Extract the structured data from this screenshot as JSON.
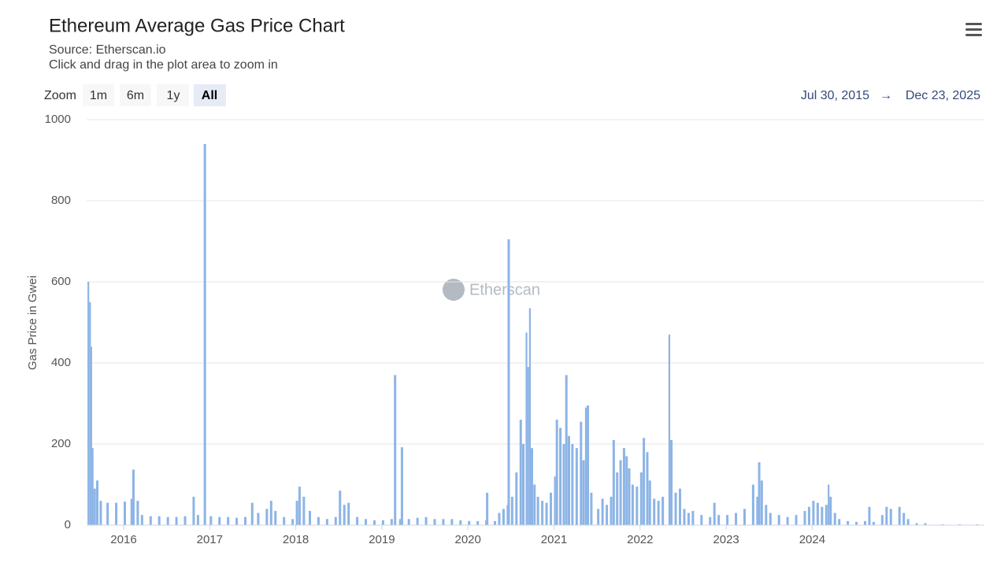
{
  "chart_data": {
    "type": "bar",
    "title": "Ethereum Average Gas Price Chart",
    "subtitle_source": "Source: Etherscan.io",
    "subtitle_hint": "Click and drag in the plot area to zoom in",
    "zoom_label": "Zoom",
    "zoom_buttons": [
      "1m",
      "6m",
      "1y",
      "All"
    ],
    "range_from": "Jul 30, 2015",
    "range_separator": "→",
    "range_to": "Dec 23, 2025",
    "watermark": "Etherscan",
    "y_label": "Gas Price in Gwei",
    "color": "#8cb4e6",
    "grid": true,
    "xlim": [
      2015.57,
      2026.0
    ],
    "xticks": [
      2016,
      2017,
      2018,
      2019,
      2020,
      2021,
      2022,
      2023,
      2024
    ],
    "ylim": [
      0,
      1000
    ],
    "yticks": [
      0,
      200,
      400,
      600,
      800,
      1000
    ],
    "x": [
      2015.58,
      2015.6,
      2015.62,
      2015.63,
      2015.65,
      2015.68,
      2015.72,
      2015.8,
      2015.9,
      2016.0,
      2016.08,
      2016.1,
      2016.15,
      2016.2,
      2016.3,
      2016.4,
      2016.5,
      2016.6,
      2016.7,
      2016.8,
      2016.85,
      2016.93,
      2017.0,
      2017.1,
      2017.2,
      2017.3,
      2017.4,
      2017.48,
      2017.55,
      2017.65,
      2017.7,
      2017.75,
      2017.85,
      2017.95,
      2018.0,
      2018.03,
      2018.08,
      2018.15,
      2018.25,
      2018.35,
      2018.45,
      2018.5,
      2018.55,
      2018.6,
      2018.7,
      2018.8,
      2018.9,
      2019.0,
      2019.1,
      2019.14,
      2019.2,
      2019.22,
      2019.3,
      2019.4,
      2019.5,
      2019.6,
      2019.7,
      2019.8,
      2019.9,
      2020.0,
      2020.1,
      2020.2,
      2020.21,
      2020.3,
      2020.35,
      2020.4,
      2020.45,
      2020.46,
      2020.5,
      2020.55,
      2020.6,
      2020.63,
      2020.67,
      2020.69,
      2020.71,
      2020.73,
      2020.76,
      2020.8,
      2020.85,
      2020.9,
      2020.95,
      2021.0,
      2021.02,
      2021.06,
      2021.1,
      2021.13,
      2021.16,
      2021.2,
      2021.25,
      2021.3,
      2021.33,
      2021.36,
      2021.38,
      2021.42,
      2021.5,
      2021.55,
      2021.6,
      2021.65,
      2021.68,
      2021.72,
      2021.76,
      2021.8,
      2021.83,
      2021.86,
      2021.9,
      2021.95,
      2022.0,
      2022.03,
      2022.07,
      2022.1,
      2022.15,
      2022.2,
      2022.25,
      2022.33,
      2022.35,
      2022.4,
      2022.45,
      2022.5,
      2022.55,
      2022.6,
      2022.7,
      2022.8,
      2022.85,
      2022.9,
      2023.0,
      2023.1,
      2023.2,
      2023.3,
      2023.35,
      2023.37,
      2023.4,
      2023.45,
      2023.5,
      2023.6,
      2023.7,
      2023.8,
      2023.9,
      2023.95,
      2024.0,
      2024.05,
      2024.1,
      2024.15,
      2024.18,
      2024.2,
      2024.25,
      2024.3,
      2024.4,
      2024.5,
      2024.6,
      2024.65,
      2024.7,
      2024.8,
      2024.85,
      2024.9,
      2025.0,
      2025.05,
      2025.1,
      2025.2,
      2025.3,
      2025.5,
      2025.7,
      2025.9
    ],
    "values": [
      600,
      550,
      440,
      190,
      90,
      110,
      60,
      55,
      55,
      58,
      65,
      137,
      60,
      25,
      22,
      22,
      20,
      20,
      22,
      70,
      25,
      940,
      22,
      20,
      20,
      18,
      20,
      55,
      30,
      40,
      60,
      35,
      20,
      15,
      60,
      95,
      70,
      35,
      20,
      15,
      20,
      85,
      50,
      55,
      20,
      15,
      12,
      12,
      15,
      370,
      15,
      192,
      15,
      18,
      20,
      15,
      15,
      15,
      12,
      10,
      10,
      12,
      80,
      10,
      30,
      40,
      50,
      705,
      70,
      130,
      260,
      200,
      475,
      390,
      535,
      190,
      100,
      70,
      60,
      55,
      80,
      120,
      260,
      240,
      200,
      370,
      220,
      200,
      190,
      255,
      160,
      290,
      295,
      80,
      40,
      65,
      50,
      70,
      210,
      130,
      160,
      190,
      170,
      140,
      100,
      95,
      130,
      215,
      180,
      110,
      65,
      60,
      70,
      470,
      210,
      80,
      90,
      40,
      30,
      35,
      25,
      20,
      55,
      25,
      25,
      30,
      40,
      100,
      70,
      155,
      110,
      50,
      30,
      25,
      20,
      25,
      35,
      45,
      60,
      55,
      45,
      50,
      100,
      70,
      30,
      15,
      10,
      8,
      10,
      45,
      8,
      25,
      45,
      40,
      45,
      30,
      15,
      5,
      5,
      2,
      2,
      2
    ]
  }
}
